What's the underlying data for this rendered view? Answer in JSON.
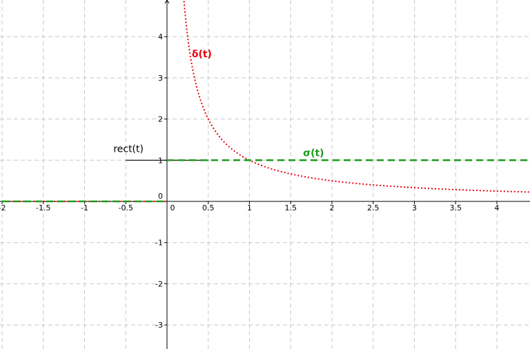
{
  "chart_data": {
    "type": "line",
    "xlim": [
      -2,
      4.4
    ],
    "ylim": [
      -3.6,
      4.9
    ],
    "grid": true,
    "x_ticks": [
      -2,
      -1.5,
      -1,
      -0.5,
      0,
      0.5,
      1,
      1.5,
      2,
      2.5,
      3,
      3.5,
      4
    ],
    "x_tick_labels": [
      "-2",
      "-1.5",
      "-1",
      "-0.5",
      "0",
      "0.5",
      "1",
      "1.5",
      "2",
      "2.5",
      "3",
      "3.5",
      "4"
    ],
    "y_ticks": [
      -3,
      -2,
      -1,
      0,
      1,
      2,
      3,
      4
    ],
    "y_tick_labels": [
      "-3",
      "-2",
      "-1",
      "0",
      "1",
      "2",
      "3",
      "4"
    ],
    "series": [
      {
        "name": "δ(t)",
        "color": "#e8000b",
        "style": "dotted",
        "formula": "y = 1/t for t > 0; y = 0 for t < 0",
        "x": [
          -2,
          0,
          0.22,
          0.3,
          0.4,
          0.5,
          0.6,
          0.75,
          1,
          1.25,
          1.5,
          2,
          2.5,
          3,
          3.5,
          4,
          4.4
        ],
        "y": [
          0,
          0,
          4.55,
          3.33,
          2.5,
          2,
          1.67,
          1.33,
          1,
          0.8,
          0.67,
          0.5,
          0.4,
          0.33,
          0.29,
          0.25,
          0.23
        ]
      },
      {
        "name": "σ(t)",
        "color": "#1a9a1a",
        "style": "dashed",
        "x": [
          -2,
          0,
          0,
          4.4
        ],
        "y": [
          0,
          0,
          1,
          1
        ]
      },
      {
        "name": "rect(t)",
        "color": "#000000",
        "style": "solid",
        "x": [
          -0.5,
          0.5
        ],
        "y": [
          1,
          1
        ]
      }
    ],
    "annotations": [
      {
        "text": "δ(t)",
        "x": 0.3,
        "y": 3.5,
        "color": "#e8000b"
      },
      {
        "text": "σ(t)",
        "x": 1.65,
        "y": 1.1,
        "color": "#1a9a1a"
      },
      {
        "text": "rect(t)",
        "x": -0.65,
        "y": 1.2,
        "color": "#000000"
      }
    ]
  }
}
